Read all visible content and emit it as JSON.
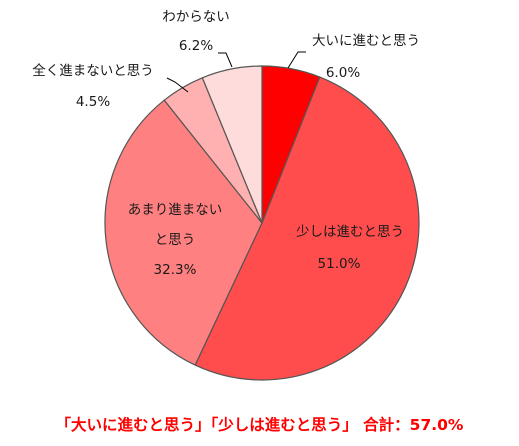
{
  "chart_data": {
    "type": "pie",
    "slices": [
      {
        "label": "大いに進むと思う",
        "value": 6.0,
        "display": "6.0%",
        "color": "#ff0000"
      },
      {
        "label": "少しは進むと思う",
        "value": 51.0,
        "display": "51.0%",
        "color": "#ff4d4d"
      },
      {
        "label_lines": [
          "あまり進まない",
          "と思う"
        ],
        "value": 32.3,
        "display": "32.3%",
        "color": "#ff8080"
      },
      {
        "label": "全く進まないと思う",
        "value": 4.5,
        "display": "4.5%",
        "color": "#ffb0b0"
      },
      {
        "label": "わからない",
        "value": 6.2,
        "display": "6.2%",
        "color": "#ffdcdc"
      }
    ],
    "start": "12 o'clock",
    "direction": "clockwise"
  },
  "summary": {
    "text": "「大いに進むと思う」「少しは進むと思う」 合計：57.0%"
  }
}
